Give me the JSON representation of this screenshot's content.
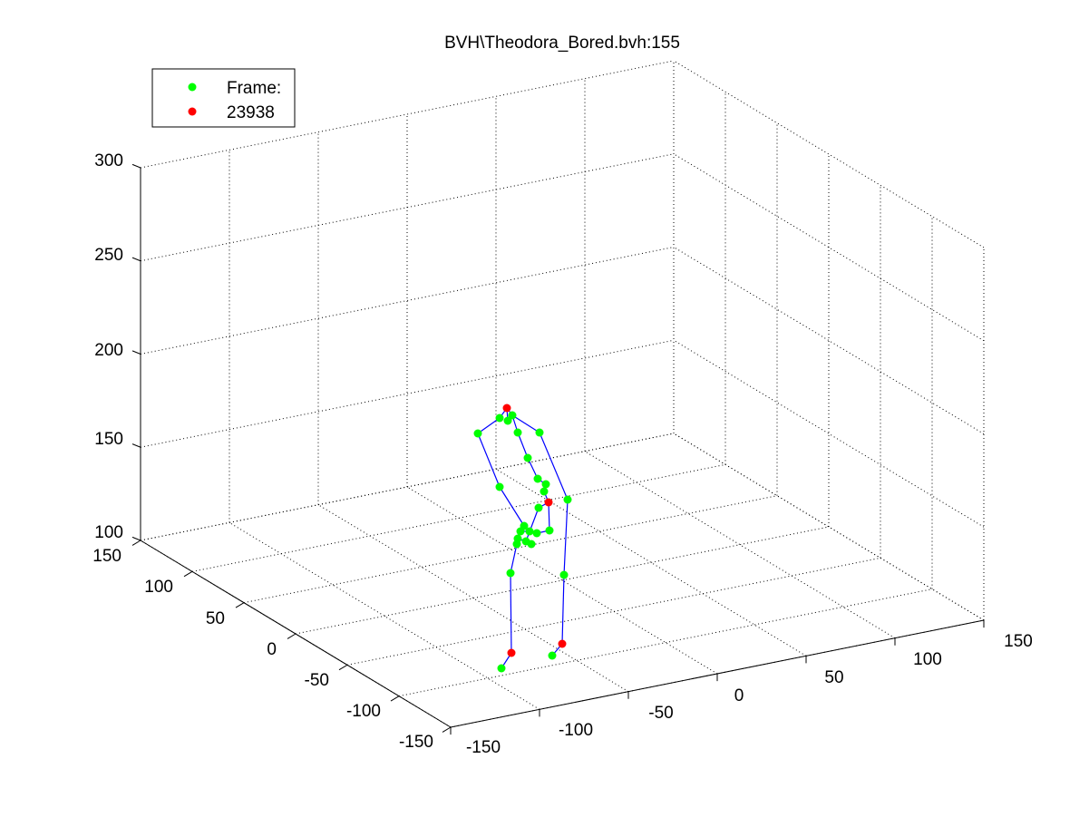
{
  "chart_data": {
    "type": "scatter",
    "title": "BVH\\Theodora_Bored.bvh:155",
    "x_ticks": [
      "-150",
      "-100",
      "-50",
      "0",
      "50",
      "100",
      "150"
    ],
    "y_ticks": [
      "-150",
      "-100",
      "-50",
      "0",
      "50",
      "100",
      "150"
    ],
    "z_ticks": [
      "100",
      "150",
      "200",
      "250",
      "300"
    ],
    "xlim": [
      -150,
      150
    ],
    "ylim": [
      -150,
      150
    ],
    "zlim": [
      100,
      300
    ],
    "grid": true,
    "legend_position": "top-left",
    "legend": [
      {
        "label": "Frame:",
        "color": "#00ff00"
      },
      {
        "label": "23938",
        "color": "#ff0000"
      }
    ],
    "colors": {
      "joint": "#00ff00",
      "end_site": "#ff0000",
      "bone": "#0000ff"
    },
    "joints": [
      {
        "p": [
          559,
          450
        ],
        "c": "r"
      },
      {
        "p": [
          565,
          458
        ],
        "c": "g"
      },
      {
        "p": [
          551,
          461
        ],
        "c": "g"
      },
      {
        "p": [
          560,
          464
        ],
        "c": "g"
      },
      {
        "p": [
          571,
          477
        ],
        "c": "g"
      },
      {
        "p": [
          527,
          478
        ],
        "c": "g"
      },
      {
        "p": [
          595,
          477
        ],
        "c": "g"
      },
      {
        "p": [
          582,
          505
        ],
        "c": "g"
      },
      {
        "p": [
          593,
          528
        ],
        "c": "g"
      },
      {
        "p": [
          602,
          534
        ],
        "c": "g"
      },
      {
        "p": [
          600,
          542
        ],
        "c": "g"
      },
      {
        "p": [
          551,
          537
        ],
        "c": "g"
      },
      {
        "p": [
          626,
          551
        ],
        "c": "g"
      },
      {
        "p": [
          605,
          554
        ],
        "c": "r"
      },
      {
        "p": [
          594,
          560
        ],
        "c": "g"
      },
      {
        "p": [
          578,
          580
        ],
        "c": "g"
      },
      {
        "p": [
          574,
          586
        ],
        "c": "g"
      },
      {
        "p": [
          584,
          586
        ],
        "c": "g"
      },
      {
        "p": [
          592,
          588
        ],
        "c": "g"
      },
      {
        "p": [
          606,
          585
        ],
        "c": "g"
      },
      {
        "p": [
          571,
          594
        ],
        "c": "g"
      },
      {
        "p": [
          580,
          597
        ],
        "c": "g"
      },
      {
        "p": [
          586,
          600
        ],
        "c": "g"
      },
      {
        "p": [
          570,
          600
        ],
        "c": "g"
      },
      {
        "p": [
          563,
          632
        ],
        "c": "g"
      },
      {
        "p": [
          622,
          634
        ],
        "c": "g"
      },
      {
        "p": [
          620,
          710
        ],
        "c": "r"
      },
      {
        "p": [
          564,
          720
        ],
        "c": "r"
      },
      {
        "p": [
          609,
          723
        ],
        "c": "g"
      },
      {
        "p": [
          553,
          737
        ],
        "c": "g"
      }
    ],
    "bones": [
      [
        0,
        1
      ],
      [
        0,
        2
      ],
      [
        0,
        3
      ],
      [
        1,
        4
      ],
      [
        2,
        5
      ],
      [
        1,
        6
      ],
      [
        4,
        7
      ],
      [
        7,
        8
      ],
      [
        8,
        9
      ],
      [
        9,
        10
      ],
      [
        5,
        11
      ],
      [
        11,
        15
      ],
      [
        6,
        12
      ],
      [
        12,
        25
      ],
      [
        10,
        13
      ],
      [
        13,
        19
      ],
      [
        13,
        14
      ],
      [
        14,
        21
      ],
      [
        15,
        16
      ],
      [
        16,
        17
      ],
      [
        17,
        18
      ],
      [
        18,
        19
      ],
      [
        16,
        20
      ],
      [
        20,
        21
      ],
      [
        21,
        22
      ],
      [
        20,
        23
      ],
      [
        23,
        24
      ],
      [
        24,
        27
      ],
      [
        27,
        29
      ],
      [
        25,
        26
      ],
      [
        26,
        28
      ]
    ]
  }
}
